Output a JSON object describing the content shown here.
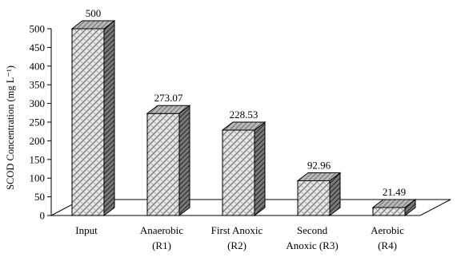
{
  "chart_data": {
    "type": "bar",
    "categories": [
      "Input",
      "Anaerobic (R1)",
      "First Anoxic (R2)",
      "Second Anoxic (R3)",
      "Aerobic (R4)"
    ],
    "category_lines": [
      [
        "Input"
      ],
      [
        "Anaerobic",
        "(R1)"
      ],
      [
        "First Anoxic",
        "(R2)"
      ],
      [
        "Second",
        "Anoxic (R3)"
      ],
      [
        "Aerobic",
        "(R4)"
      ]
    ],
    "values": [
      500,
      273.07,
      228.53,
      92.96,
      21.49
    ],
    "value_labels": [
      "500",
      "273.07",
      "228.53",
      "92.96",
      "21.49"
    ],
    "title": "",
    "xlabel": "",
    "ylabel": "SCOD Concentration (mg L⁻¹)",
    "ylim": [
      0,
      500
    ],
    "yticks": [
      "0",
      "50",
      "100",
      "150",
      "200",
      "250",
      "300",
      "350",
      "400",
      "450",
      "500"
    ],
    "grid": false,
    "style": "3d-column"
  }
}
